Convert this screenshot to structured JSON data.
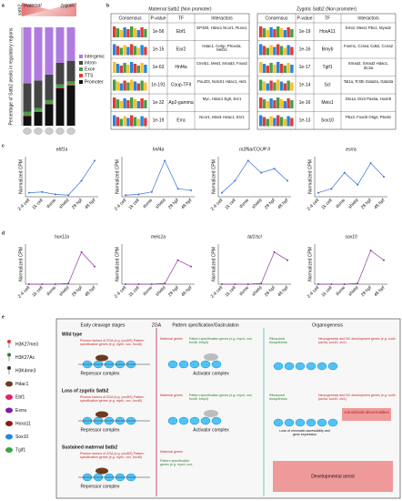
{
  "panels": [
    "a",
    "b",
    "c",
    "d",
    "e"
  ],
  "chart_data": [
    {
      "type": "stacked-bar",
      "ylabel": "Percentage of Satb2 peaks in regulatory regions",
      "header": [
        "maternal",
        "zygotic"
      ],
      "header_label": "satb2",
      "categories": [
        null,
        null,
        null,
        null,
        null
      ],
      "ylim": [
        0,
        100
      ],
      "series": [
        {
          "name": "Promoter",
          "color": "#111111",
          "values": [
            10,
            14,
            22,
            38,
            41
          ]
        },
        {
          "name": "TTS",
          "color": "#e53935",
          "values": [
            1,
            1,
            1,
            1,
            1
          ]
        },
        {
          "name": "Exon",
          "color": "#43a047",
          "values": [
            3,
            3,
            3,
            3,
            3
          ]
        },
        {
          "name": "Intron",
          "color": "#444444",
          "values": [
            29,
            28,
            26,
            22,
            21
          ]
        },
        {
          "name": "Intergenic",
          "color": "#b07be0",
          "values": [
            57,
            54,
            48,
            36,
            34
          ]
        }
      ]
    },
    {
      "type": "line",
      "title": "ebf1a",
      "ylabel": "Normalized CPM",
      "categories": [
        "2-4 cell",
        "1k cell",
        "dome",
        "shield",
        "28 hpf",
        "48 hpf"
      ],
      "ylim": [
        0,
        50
      ],
      "color": "#3b6fd9",
      "values": [
        5,
        6,
        3,
        2,
        20,
        45
      ]
    },
    {
      "type": "line",
      "title": "hnf4a",
      "ylabel": "Normalized CPM",
      "categories": [
        "2-4 cell",
        "1k cell",
        "dome",
        "shield",
        "28 hpf",
        "48 hpf"
      ],
      "ylim": [
        0,
        50
      ],
      "color": "#3b6fd9",
      "values": [
        2,
        3,
        6,
        45,
        10,
        8
      ]
    },
    {
      "type": "line",
      "title": "nr2f6a/COUP II",
      "ylabel": "Normalized CPM",
      "categories": [
        "2-4 cell",
        "1k cell",
        "dome",
        "shield",
        "28 hpf",
        "48 hpf"
      ],
      "ylim": [
        0,
        50
      ],
      "color": "#3b6fd9",
      "values": [
        5,
        20,
        45,
        30,
        35,
        20
      ]
    },
    {
      "type": "line",
      "title": "esrra",
      "ylabel": "Normalized CPM",
      "categories": [
        "2-4 cell",
        "1k cell",
        "dome",
        "shield",
        "28 hpf",
        "48 hpf"
      ],
      "ylim": [
        0,
        50
      ],
      "color": "#3b6fd9",
      "values": [
        5,
        10,
        30,
        15,
        42,
        25
      ]
    },
    {
      "type": "line",
      "title": "hox11a",
      "ylabel": "Normalized CPM",
      "categories": [
        "2-4 cell",
        "1k cell",
        "dome",
        "shield",
        "28 hpf",
        "48 hpf"
      ],
      "ylim": [
        0,
        50
      ],
      "color": "#8e3a9e",
      "values": [
        0,
        0,
        0,
        1,
        40,
        22
      ]
    },
    {
      "type": "line",
      "title": "meis1a",
      "ylabel": "Normalized CPM",
      "categories": [
        "2-4 cell",
        "1k cell",
        "dome",
        "shield",
        "28 hpf",
        "48 hpf"
      ],
      "ylim": [
        0,
        50
      ],
      "color": "#8e3a9e",
      "values": [
        0,
        0,
        0,
        1,
        30,
        22
      ]
    },
    {
      "type": "line",
      "title": "tal1/scl",
      "ylabel": "Normalized CPM",
      "categories": [
        "2-4 cell",
        "1k cell",
        "dome",
        "shield",
        "28 hpf",
        "48 hpf"
      ],
      "ylim": [
        0,
        50
      ],
      "color": "#8e3a9e",
      "values": [
        0,
        0,
        0,
        1,
        40,
        30
      ]
    },
    {
      "type": "line",
      "title": "sox10",
      "ylabel": "Normalized CPM",
      "categories": [
        "2-4 cell",
        "1k cell",
        "dome",
        "shield",
        "28 hpf",
        "48 hpf"
      ],
      "ylim": [
        0,
        50
      ],
      "color": "#8e3a9e",
      "values": [
        0,
        0,
        0,
        1,
        42,
        30
      ]
    }
  ],
  "tables": [
    {
      "title": "Maternal Satb2 (Non promoter)",
      "columns": [
        "Consensus",
        "P-value",
        "TF",
        "Interactors"
      ],
      "rows": [
        [
          "1e-56",
          "Ebf1",
          "EP300, Hdac1 Ncor1, Runx1"
        ],
        [
          "1e-15",
          "Ear2",
          "Hdac1, Cebp, Phox2a, Mef2c"
        ],
        [
          "1e-63",
          "Hnf4a",
          "Clnnb1, Med1 Smad3, Foxa2"
        ],
        [
          "1e-191",
          "Coup-TFII",
          "Pou2f3, Notch1 Hdac1, Akt1"
        ],
        [
          "1e-32",
          "Ap2-gamma",
          "Myc, Hdac1 Egfr, Esr1"
        ],
        [
          "1e-19",
          "Erra",
          "Ncor1, Med1 Hdac1, Esr1"
        ]
      ]
    },
    {
      "title": "Zygotic Satb2 (Non promoter)",
      "columns": [
        "Consensus",
        "P-value",
        "TF",
        "Interactors"
      ],
      "rows": [
        [
          "1e-19",
          "HoxA11",
          "Emi3, Meis1 Pbx1, Myod2"
        ],
        [
          "1e-16",
          "Bmyb",
          "Foxm1, Ccna1 Cdk2, Ccna2"
        ],
        [
          "1e-17",
          "Tgif1",
          "Smad2, Smad3 Hdac1, Zic2a"
        ],
        [
          "1e-14",
          "Scl",
          "Tal1a, Tcf3b Gata2a, Gata3a"
        ],
        [
          "1e-16",
          "Meis1",
          "Dlx1a, Dlx3 Pax6a, Hoxb9"
        ],
        [
          "1e-13",
          "Sox10",
          "Pbx3, Foxd3 Olig2, Pbx2b"
        ]
      ]
    }
  ],
  "diagram": {
    "legend": [
      {
        "label": "H3K27me3",
        "color": "#e53935"
      },
      {
        "label": "H3K27Ac",
        "color": "#2e7d32"
      },
      {
        "label": "H3K4me3",
        "color": "#333333"
      },
      {
        "label": "Hdac1",
        "color": "#6d3b1f"
      },
      {
        "label": "Ebf1",
        "color": "#e91e63"
      },
      {
        "label": "Esrra",
        "color": "#7b1fa2"
      },
      {
        "label": "Hoxa11",
        "color": "#8b1a1a"
      },
      {
        "label": "Sox10",
        "color": "#1e88e5"
      },
      {
        "label": "Tgif1",
        "color": "#43a047"
      }
    ],
    "stages": [
      "Early cleavage stages",
      "ZGA",
      "Pattern specification/Gastrulation",
      "Organogenesis"
    ],
    "conditions": [
      "Wild type",
      "Loss of zygotic Satb2",
      "Sustained maternal Satb2"
    ],
    "labels": {
      "pioneer": "Pioneer factors of ZGA (e.g. pou5f3) Pattern specification genes (e.g. mych, vox, foxd5)",
      "repressor": "Repressor complex",
      "maternal": "Maternal genes",
      "pattern": "Pattern specification genes (e.g. mych, vox, foxd5, bmp4)",
      "activator": "Activator complex",
      "ribosomal": "Ribosomal biosynthesis",
      "neuro": "Neurogenesis and NC development genes (e.g. sox9, pax3a, sox10, zic1)",
      "cranio": "craniofacial abnormalities",
      "loss": "Loss of chromatin accessibility and gene expression",
      "arrest": "Developmental arrest"
    }
  }
}
